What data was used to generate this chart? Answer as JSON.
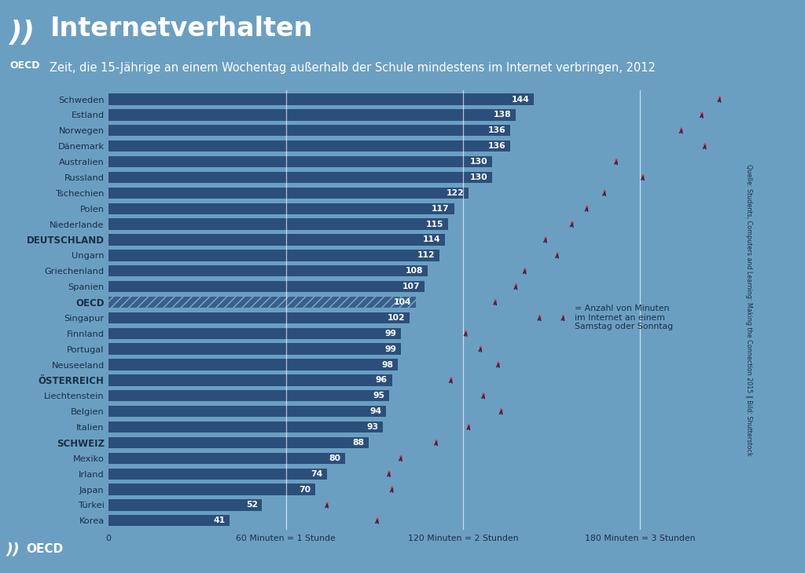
{
  "title": "Internetverhalten",
  "subtitle": "Zeit, die 15-Jährige an einem Wochentag außerhalb der Schule mindestens im Internet verbringen, 2012",
  "bg_color": "#6b9fc2",
  "header_bg": "#3d6090",
  "bar_color": "#2b4f7a",
  "oecd_bar_color": "#3a5f8a",
  "countries": [
    "Schweden",
    "Estland",
    "Norwegen",
    "Dänemark",
    "Australien",
    "Russland",
    "Tschechien",
    "Polen",
    "Niederlande",
    "DEUTSCHLAND",
    "Ungarn",
    "Griechenland",
    "Spanien",
    "OECD",
    "Singapur",
    "Finnland",
    "Portugal",
    "Neuseeland",
    "ÖSTERREICH",
    "Liechtenstein",
    "Belgien",
    "Italien",
    "SCHWEIZ",
    "Mexiko",
    "Irland",
    "Japan",
    "Türkei",
    "Korea"
  ],
  "values": [
    144,
    138,
    136,
    136,
    130,
    130,
    122,
    117,
    115,
    114,
    112,
    108,
    107,
    104,
    102,
    99,
    99,
    98,
    96,
    95,
    94,
    93,
    88,
    80,
    74,
    70,
    52,
    41
  ],
  "weekend_values": [
    207,
    201,
    194,
    202,
    172,
    181,
    168,
    162,
    157,
    148,
    152,
    141,
    138,
    131,
    146,
    121,
    126,
    132,
    116,
    127,
    133,
    122,
    111,
    99,
    95,
    96,
    74,
    91
  ],
  "xlabel_ticks": [
    0,
    60,
    120,
    180
  ],
  "xlabel_labels": [
    "0",
    "60 Minuten = 1 Stunde",
    "120 Minuten = 2 Stunden",
    "180 Minuten = 3 Stunden"
  ],
  "legend_text": "= Anzahl von Minuten\nim Internet an einem\nSamstag oder Sonntag",
  "source_text": "Quelle: Students, Computers and Learning: Making the Connection 2015 ‖ Bild: Shutterstock",
  "bold_countries": [
    "DEUTSCHLAND",
    "ÖSTERREICH",
    "SCHWEIZ",
    "OECD"
  ]
}
